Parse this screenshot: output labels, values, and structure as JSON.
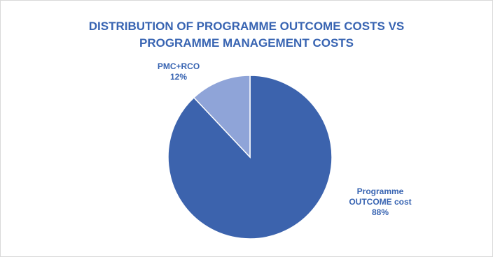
{
  "chart_data": {
    "type": "pie",
    "title": "DISTRIBUTION OF PROGRAMME OUTCOME COSTS VS PROGRAMME MANAGEMENT COSTS",
    "title_lines": [
      "DISTRIBUTION OF PROGRAMME OUTCOME COSTS VS",
      "PROGRAMME MANAGEMENT COSTS"
    ],
    "slices": [
      {
        "label_lines": [
          "Programme",
          "OUTCOME cost"
        ],
        "value": 88,
        "value_label": "88%",
        "color": "#3c63ad"
      },
      {
        "label_lines": [
          "PMC+RCO"
        ],
        "value": 12,
        "value_label": "12%",
        "color": "#8fa4d8"
      }
    ],
    "legend": "none",
    "title_color": "#3864b2",
    "label_color": "#3864b2"
  }
}
